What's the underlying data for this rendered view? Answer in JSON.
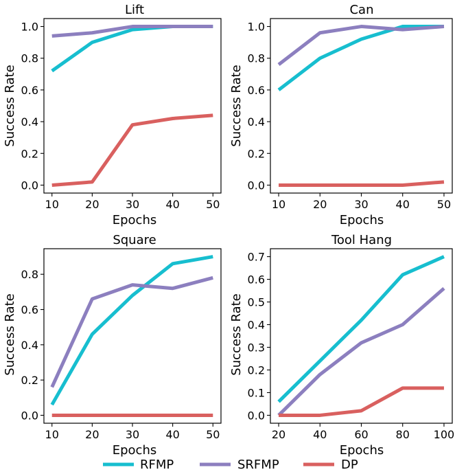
{
  "legend": {
    "placement": "bottom-center"
  },
  "chart_data": [
    {
      "type": "line",
      "title": "Lift",
      "xlabel": "Epochs",
      "ylabel": "Success Rate",
      "x": [
        10,
        20,
        30,
        40,
        50
      ],
      "xticks": [
        "10",
        "20",
        "30",
        "40",
        "50"
      ],
      "yticks": [
        "0.0",
        "0.2",
        "0.4",
        "0.6",
        "0.8",
        "1.0"
      ],
      "xlim": [
        8,
        52
      ],
      "ylim": [
        -0.05,
        1.05
      ],
      "grid": false,
      "series": [
        {
          "name": "RFMP",
          "color": "#17becf",
          "values": [
            0.72,
            0.9,
            0.98,
            1.0,
            1.0
          ]
        },
        {
          "name": "SRFMP",
          "color": "#8c7fbf",
          "values": [
            0.94,
            0.96,
            1.0,
            1.0,
            1.0
          ]
        },
        {
          "name": "DP",
          "color": "#d9605f",
          "values": [
            0.0,
            0.02,
            0.38,
            0.42,
            0.44
          ]
        }
      ]
    },
    {
      "type": "line",
      "title": "Can",
      "xlabel": "Epochs",
      "ylabel": "Success Rate",
      "x": [
        10,
        20,
        30,
        40,
        50
      ],
      "xticks": [
        "10",
        "20",
        "30",
        "40",
        "50"
      ],
      "yticks": [
        "0.0",
        "0.2",
        "0.4",
        "0.6",
        "0.8",
        "1.0"
      ],
      "xlim": [
        8,
        52
      ],
      "ylim": [
        -0.05,
        1.05
      ],
      "grid": false,
      "series": [
        {
          "name": "RFMP",
          "color": "#17becf",
          "values": [
            0.6,
            0.8,
            0.92,
            1.0,
            1.0
          ]
        },
        {
          "name": "SRFMP",
          "color": "#8c7fbf",
          "values": [
            0.76,
            0.96,
            1.0,
            0.98,
            1.0
          ]
        },
        {
          "name": "DP",
          "color": "#d9605f",
          "values": [
            0.0,
            0.0,
            0.0,
            0.0,
            0.02
          ]
        }
      ]
    },
    {
      "type": "line",
      "title": "Square",
      "xlabel": "Epochs",
      "ylabel": "Success Rate",
      "x": [
        10,
        20,
        30,
        40,
        50
      ],
      "xticks": [
        "10",
        "20",
        "30",
        "40",
        "50"
      ],
      "yticks": [
        "0.0",
        "0.2",
        "0.4",
        "0.6",
        "0.8"
      ],
      "xlim": [
        8,
        52
      ],
      "ylim": [
        -0.045,
        0.945
      ],
      "grid": false,
      "series": [
        {
          "name": "RFMP",
          "color": "#17becf",
          "values": [
            0.06,
            0.46,
            0.68,
            0.86,
            0.9
          ]
        },
        {
          "name": "SRFMP",
          "color": "#8c7fbf",
          "values": [
            0.16,
            0.66,
            0.74,
            0.72,
            0.78
          ]
        },
        {
          "name": "DP",
          "color": "#d9605f",
          "values": [
            0.0,
            0.0,
            0.0,
            0.0,
            0.0
          ]
        }
      ]
    },
    {
      "type": "line",
      "title": "Tool Hang",
      "xlabel": "Epochs",
      "ylabel": "Success Rate",
      "x": [
        20,
        40,
        60,
        80,
        100
      ],
      "xticks": [
        "20",
        "40",
        "60",
        "80",
        "100"
      ],
      "yticks": [
        "0.0",
        "0.1",
        "0.2",
        "0.3",
        "0.4",
        "0.5",
        "0.6",
        "0.7"
      ],
      "xlim": [
        16,
        104
      ],
      "ylim": [
        -0.035,
        0.735
      ],
      "grid": false,
      "series": [
        {
          "name": "RFMP",
          "color": "#17becf",
          "values": [
            0.06,
            0.24,
            0.42,
            0.62,
            0.7
          ]
        },
        {
          "name": "SRFMP",
          "color": "#8c7fbf",
          "values": [
            0.0,
            0.18,
            0.32,
            0.4,
            0.56
          ]
        },
        {
          "name": "DP",
          "color": "#d9605f",
          "values": [
            0.0,
            0.0,
            0.02,
            0.12,
            0.12
          ]
        }
      ]
    }
  ]
}
